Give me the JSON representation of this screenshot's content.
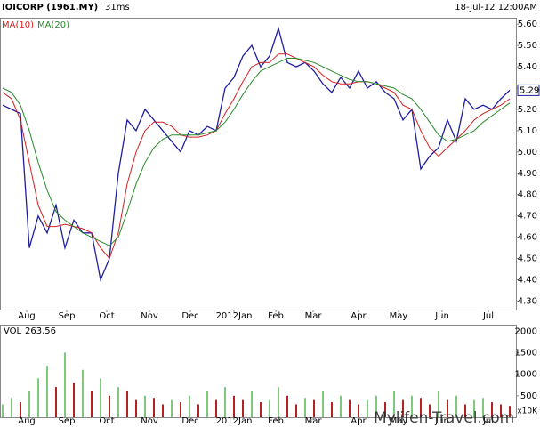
{
  "chart_data": [
    {
      "type": "line",
      "title": "IOICORP (1961.MY)",
      "subtitle": "31ms",
      "date": "18-Jul-12 12:00AM",
      "last_label": "5.29",
      "series": [
        {
          "color": "#1f1fa0",
          "values": [
            5.22,
            5.2,
            5.18,
            4.55,
            4.7,
            4.62,
            4.75,
            4.55,
            4.68,
            4.62,
            4.62,
            4.4,
            4.5,
            4.9,
            5.15,
            5.1,
            5.2,
            5.15,
            5.1,
            5.05,
            5.0,
            5.1,
            5.08,
            5.12,
            5.1,
            5.3,
            5.35,
            5.45,
            5.5,
            5.4,
            5.45,
            5.58,
            5.42,
            5.4,
            5.42,
            5.38,
            5.32,
            5.28,
            5.35,
            5.3,
            5.38,
            5.3,
            5.33,
            5.28,
            5.25,
            5.15,
            5.2,
            4.92,
            4.98,
            5.02,
            5.15,
            5.05,
            5.25,
            5.2,
            5.22,
            5.2,
            5.25,
            5.29
          ]
        },
        {
          "name": "MA(10)",
          "color": "#d42020",
          "values": [
            5.28,
            5.25,
            5.15,
            4.95,
            4.75,
            4.65,
            4.65,
            4.66,
            4.65,
            4.64,
            4.62,
            4.55,
            4.5,
            4.62,
            4.85,
            5.0,
            5.1,
            5.14,
            5.14,
            5.12,
            5.08,
            5.07,
            5.07,
            5.08,
            5.1,
            5.18,
            5.25,
            5.33,
            5.4,
            5.42,
            5.42,
            5.46,
            5.46,
            5.44,
            5.42,
            5.4,
            5.36,
            5.33,
            5.32,
            5.32,
            5.33,
            5.33,
            5.32,
            5.3,
            5.28,
            5.22,
            5.2,
            5.1,
            5.02,
            4.98,
            5.02,
            5.06,
            5.1,
            5.15,
            5.18,
            5.2,
            5.22,
            5.25
          ]
        },
        {
          "name": "MA(20)",
          "color": "#2a8a2a",
          "values": [
            5.3,
            5.28,
            5.22,
            5.1,
            4.95,
            4.82,
            4.72,
            4.68,
            4.65,
            4.62,
            4.6,
            4.58,
            4.56,
            4.6,
            4.72,
            4.85,
            4.95,
            5.02,
            5.06,
            5.08,
            5.08,
            5.08,
            5.08,
            5.09,
            5.1,
            5.14,
            5.2,
            5.27,
            5.33,
            5.38,
            5.4,
            5.42,
            5.44,
            5.44,
            5.43,
            5.42,
            5.4,
            5.38,
            5.36,
            5.34,
            5.33,
            5.33,
            5.32,
            5.31,
            5.3,
            5.27,
            5.25,
            5.2,
            5.14,
            5.08,
            5.05,
            5.06,
            5.08,
            5.1,
            5.14,
            5.17,
            5.2,
            5.23
          ]
        }
      ],
      "xlim": [
        -0.3,
        57.7
      ],
      "xticks": [
        {
          "value": 2.7,
          "label": "Aug"
        },
        {
          "value": 7.2,
          "label": "Sep"
        },
        {
          "value": 11.7,
          "label": "Oct"
        },
        {
          "value": 16.5,
          "label": "Nov"
        },
        {
          "value": 21.1,
          "label": "Dec"
        },
        {
          "value": 26,
          "label": "2012Jan"
        },
        {
          "value": 30.7,
          "label": "Feb"
        },
        {
          "value": 34.9,
          "label": "Mar"
        },
        {
          "value": 40,
          "label": "Apr"
        },
        {
          "value": 44.5,
          "label": "May"
        },
        {
          "value": 49.4,
          "label": "Jun"
        },
        {
          "value": 54.6,
          "label": "Jul"
        }
      ],
      "ylim": [
        4.26,
        5.63
      ],
      "yticks": [
        {
          "value": 4.3,
          "label": "4.30"
        },
        {
          "value": 4.4,
          "label": "4.40"
        },
        {
          "value": 4.5,
          "label": "4.50"
        },
        {
          "value": 4.6,
          "label": "4.60"
        },
        {
          "value": 4.7,
          "label": "4.70"
        },
        {
          "value": 4.8,
          "label": "4.80"
        },
        {
          "value": 4.9,
          "label": "4.90"
        },
        {
          "value": 5.0,
          "label": "5.00"
        },
        {
          "value": 5.1,
          "label": "5.10"
        },
        {
          "value": 5.2,
          "label": "5.20"
        },
        {
          "value": 5.3,
          "label": "5.30"
        },
        {
          "value": 5.4,
          "label": "5.40"
        },
        {
          "value": 5.5,
          "label": "5.50"
        },
        {
          "value": 5.6,
          "label": "5.60"
        }
      ]
    },
    {
      "type": "bar",
      "title": "VOL",
      "unit": "x10K",
      "watermark": "Mylifen-Travel.com",
      "series": [
        {
          "color": "#b22222",
          "values": [
            300,
            450,
            350,
            600,
            900,
            1200,
            700,
            1500,
            800,
            1100,
            600,
            900,
            500,
            700,
            600,
            400,
            500,
            450,
            300,
            400,
            350,
            500,
            300,
            600,
            400,
            700,
            500,
            400,
            600,
            350,
            400,
            700,
            500,
            300,
            450,
            400,
            600,
            350,
            500,
            400,
            300,
            400,
            500,
            350,
            600,
            400,
            500,
            450,
            300,
            600,
            400,
            500,
            300,
            400,
            450,
            350,
            300,
            263.56
          ]
        }
      ],
      "xlim": [
        -0.3,
        57.7
      ],
      "xticks": [
        {
          "value": 2.7,
          "label": "Aug"
        },
        {
          "value": 7.2,
          "label": "Sep"
        },
        {
          "value": 11.7,
          "label": "Oct"
        },
        {
          "value": 16.5,
          "label": "Nov"
        },
        {
          "value": 21.1,
          "label": "Dec"
        },
        {
          "value": 26,
          "label": "2012Jan"
        },
        {
          "value": 30.7,
          "label": "Feb"
        },
        {
          "value": 34.9,
          "label": "Mar"
        },
        {
          "value": 40,
          "label": "Apr"
        },
        {
          "value": 44.5,
          "label": "May"
        },
        {
          "value": 49.4,
          "label": "Jun"
        },
        {
          "value": 54.6,
          "label": "Jul"
        }
      ],
      "ylim": [
        0,
        2150
      ],
      "yticks": [
        500,
        1000,
        1500,
        2000
      ]
    }
  ]
}
